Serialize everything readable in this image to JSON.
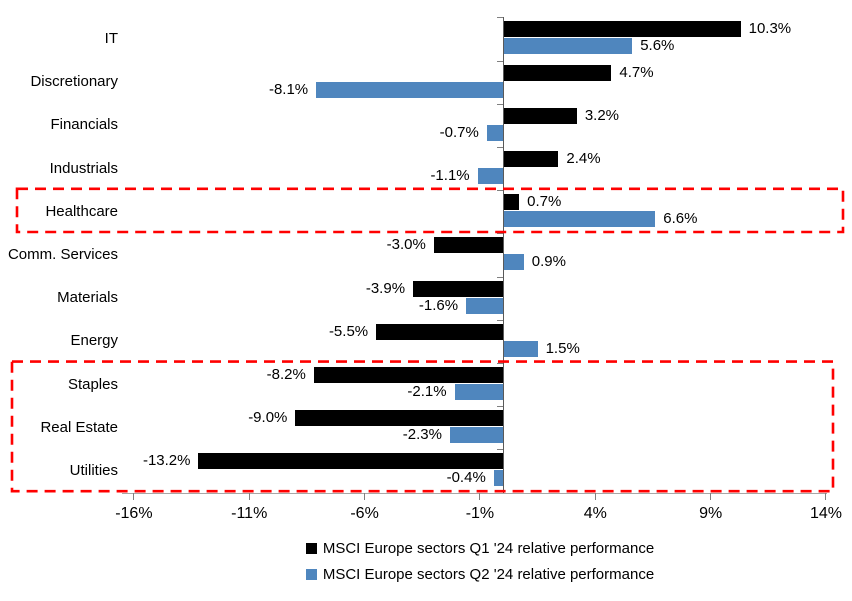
{
  "chart_data": {
    "type": "bar",
    "orientation": "horizontal",
    "title": "",
    "categories": [
      "IT",
      "Discretionary",
      "Financials",
      "Industrials",
      "Healthcare",
      "Comm. Services",
      "Materials",
      "Energy",
      "Staples",
      "Real Estate",
      "Utilities"
    ],
    "series": [
      {
        "name": "MSCI Europe sectors Q1 '24 relative performance",
        "color": "#000000",
        "values": [
          10.3,
          4.7,
          3.2,
          2.4,
          0.7,
          -3.0,
          -3.9,
          -5.5,
          -8.2,
          -9.0,
          -13.2
        ],
        "labels": [
          "10.3%",
          "4.7%",
          "3.2%",
          "2.4%",
          "0.7%",
          "-3.0%",
          "-3.9%",
          "-5.5%",
          "-8.2%",
          "-9.0%",
          "-13.2%"
        ]
      },
      {
        "name": "MSCI Europe sectors Q2 '24 relative performance",
        "color": "#4F86BE",
        "values": [
          5.6,
          -8.1,
          -0.7,
          -1.1,
          6.6,
          0.9,
          -1.6,
          1.5,
          -2.1,
          -2.3,
          -0.4
        ],
        "labels": [
          "5.6%",
          "-8.1%",
          "-0.7%",
          "-1.1%",
          "6.6%",
          "0.9%",
          "-1.6%",
          "1.5%",
          "-2.1%",
          "-2.3%",
          "-0.4%"
        ]
      }
    ],
    "xlim": [
      -16.5,
      14.5
    ],
    "x_ticks": [
      {
        "value": -16,
        "label": "-16%"
      },
      {
        "value": -11,
        "label": "-11%"
      },
      {
        "value": -6,
        "label": "-6%"
      },
      {
        "value": -1,
        "label": "-1%"
      },
      {
        "value": 4,
        "label": "4%"
      },
      {
        "value": 9,
        "label": "9%"
      },
      {
        "value": 14,
        "label": "14%"
      }
    ],
    "grid": false,
    "legend_position": "bottom",
    "highlight_color": "#FF0000",
    "highlights": [
      {
        "name": "healthcare-highlight-box",
        "rows": [
          4
        ]
      },
      {
        "name": "defensive-sectors-highlight-box",
        "rows": [
          8,
          9,
          10
        ]
      }
    ]
  }
}
